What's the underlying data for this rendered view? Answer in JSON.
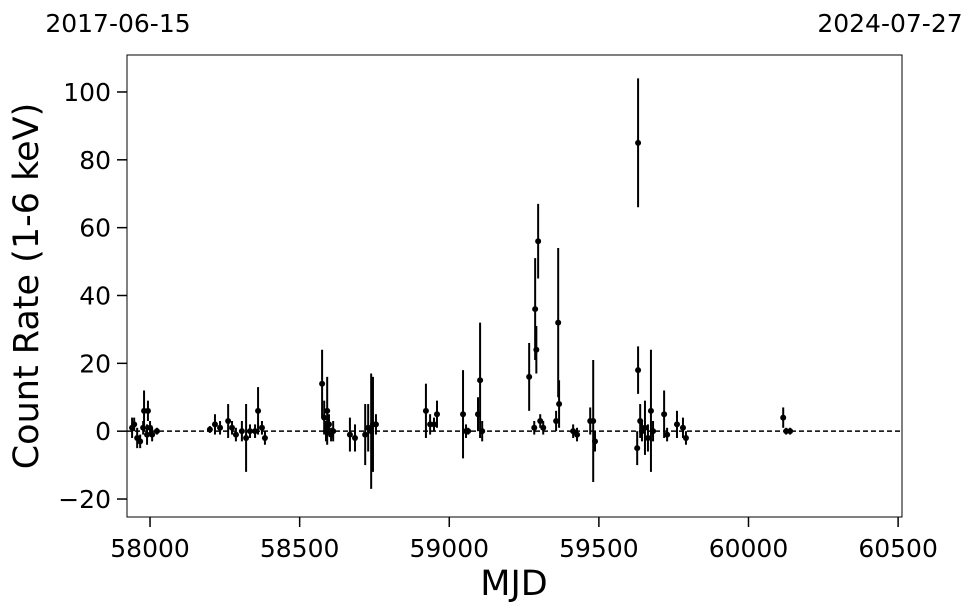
{
  "chart_data": {
    "type": "errorbar-scatter",
    "top_left_label": "2017-06-15",
    "top_right_label": "2024-07-27",
    "xlabel": "MJD",
    "ylabel": "Count Rate (1-6 keV)",
    "xlim": [
      57923,
      60513
    ],
    "ylim": [
      -25.3,
      110.9
    ],
    "xticks": [
      58000,
      58500,
      59000,
      59500,
      60000,
      60500
    ],
    "yticks": [
      {
        "value": -20,
        "label": "−20"
      },
      0,
      20,
      40,
      60,
      80,
      100
    ],
    "hline": 0,
    "color": "#000000",
    "x": [
      57940,
      57947,
      57957,
      57967,
      57977,
      57980,
      57990,
      57993,
      58000,
      58007,
      58023,
      58200,
      58217,
      58234,
      58261,
      58274,
      58287,
      58307,
      58321,
      58334,
      58351,
      58361,
      58374,
      58384,
      58575,
      58582,
      58588,
      58592,
      58598,
      58605,
      58612,
      58668,
      58685,
      58719,
      58729,
      58739,
      58745,
      58755,
      58922,
      58936,
      58949,
      58959,
      59046,
      59056,
      59063,
      59096,
      59103,
      59110,
      59267,
      59284,
      59287,
      59291,
      59297,
      59304,
      59314,
      59357,
      59364,
      59367,
      59414,
      59427,
      59471,
      59481,
      59487,
      59628,
      59631,
      59631,
      59638,
      59644,
      59654,
      59664,
      59674,
      59681,
      59718,
      59728,
      59761,
      59781,
      59791,
      60116,
      60126,
      60139
    ],
    "values": [
      1,
      2,
      -2,
      -3,
      1,
      6,
      -1,
      6,
      1,
      -1,
      0,
      0.5,
      2,
      1,
      3,
      1,
      -1,
      0,
      -2,
      0,
      0,
      6,
      1,
      -2,
      14,
      4,
      0,
      6,
      2,
      -1,
      0,
      -1,
      -2,
      -1,
      1,
      0,
      2,
      2,
      6,
      2,
      2,
      5,
      5,
      0,
      0,
      5,
      15,
      0,
      16,
      1,
      36,
      24,
      56,
      3,
      1,
      3,
      32,
      8,
      0,
      -1,
      3,
      3,
      -3,
      -5,
      85,
      18,
      3,
      0,
      1,
      -2,
      6,
      0,
      5,
      -1,
      2,
      1,
      -2,
      4,
      0,
      0
    ],
    "errors": [
      3,
      2,
      3,
      2,
      2,
      6,
      3,
      3,
      2,
      2,
      1,
      1,
      3,
      2,
      5,
      2,
      2,
      3,
      10,
      2,
      2,
      7,
      2,
      2,
      10,
      5,
      3,
      10,
      3,
      2,
      3,
      5,
      4,
      9,
      7,
      17,
      14,
      3,
      8,
      3,
      2,
      4,
      13,
      2,
      1,
      5,
      17,
      3,
      10,
      2,
      15,
      7,
      11,
      2,
      2,
      3,
      22,
      7,
      2,
      2,
      4,
      18,
      3,
      5,
      19,
      7,
      5,
      3,
      8,
      4,
      18,
      3,
      7,
      2,
      4,
      3,
      2,
      3,
      1,
      1
    ]
  }
}
